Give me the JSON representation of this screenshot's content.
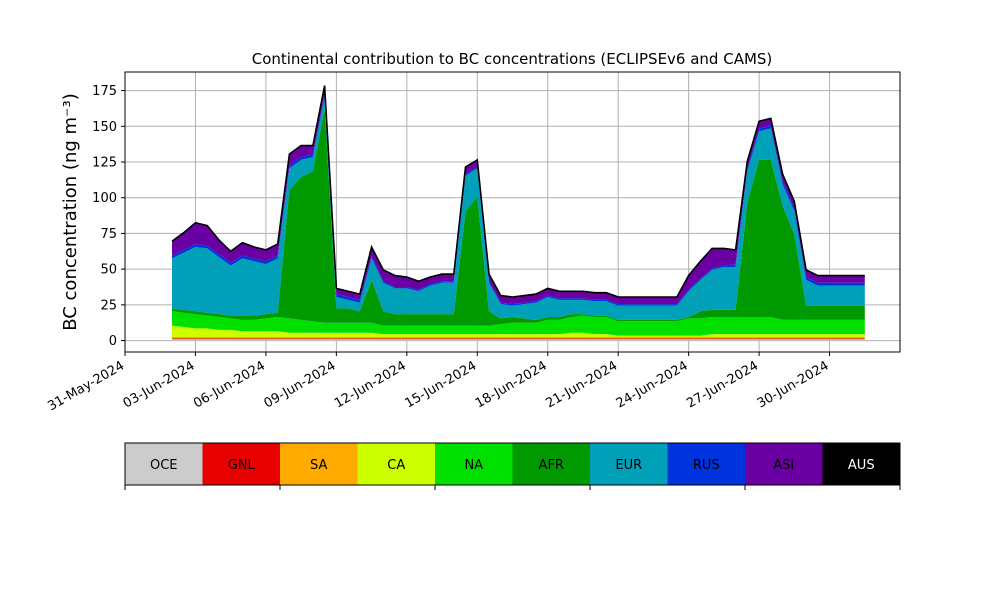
{
  "chart_data": {
    "type": "area",
    "title": "Continental contribution to BC concentrations (ECLIPSEv6 and CAMS)",
    "ylabel": "BC concentration (ng m⁻³)",
    "xlabel": "",
    "xlim": [
      "2024-05-31",
      "2024-07-03"
    ],
    "ylim": [
      -8,
      188
    ],
    "yticks": [
      0,
      25,
      50,
      75,
      100,
      125,
      150,
      175
    ],
    "xticks": [
      "2024-05-31",
      "2024-06-03",
      "2024-06-06",
      "2024-06-09",
      "2024-06-12",
      "2024-06-15",
      "2024-06-18",
      "2024-06-21",
      "2024-06-24",
      "2024-06-27",
      "2024-06-30"
    ],
    "xtick_labels": [
      "31-May-2024",
      "03-Jun-2024",
      "06-Jun-2024",
      "09-Jun-2024",
      "12-Jun-2024",
      "15-Jun-2024",
      "18-Jun-2024",
      "21-Jun-2024",
      "24-Jun-2024",
      "27-Jun-2024",
      "30-Jun-2024"
    ],
    "grid": true,
    "stacked": true,
    "x": [
      "2024-06-02T00:00",
      "2024-06-02T12:00",
      "2024-06-03T00:00",
      "2024-06-03T12:00",
      "2024-06-04T00:00",
      "2024-06-04T12:00",
      "2024-06-05T00:00",
      "2024-06-05T12:00",
      "2024-06-06T00:00",
      "2024-06-06T12:00",
      "2024-06-07T00:00",
      "2024-06-07T12:00",
      "2024-06-08T00:00",
      "2024-06-08T12:00",
      "2024-06-09T00:00",
      "2024-06-09T12:00",
      "2024-06-10T00:00",
      "2024-06-10T12:00",
      "2024-06-11T00:00",
      "2024-06-11T12:00",
      "2024-06-12T00:00",
      "2024-06-12T12:00",
      "2024-06-13T00:00",
      "2024-06-13T12:00",
      "2024-06-14T00:00",
      "2024-06-14T12:00",
      "2024-06-15T00:00",
      "2024-06-15T12:00",
      "2024-06-16T00:00",
      "2024-06-16T12:00",
      "2024-06-17T00:00",
      "2024-06-17T12:00",
      "2024-06-18T00:00",
      "2024-06-18T12:00",
      "2024-06-19T00:00",
      "2024-06-19T12:00",
      "2024-06-20T00:00",
      "2024-06-20T12:00",
      "2024-06-21T00:00",
      "2024-06-21T12:00",
      "2024-06-22T00:00",
      "2024-06-22T12:00",
      "2024-06-23T00:00",
      "2024-06-23T12:00",
      "2024-06-24T00:00",
      "2024-06-24T12:00",
      "2024-06-25T00:00",
      "2024-06-25T12:00",
      "2024-06-26T00:00",
      "2024-06-26T12:00",
      "2024-06-27T00:00",
      "2024-06-27T12:00",
      "2024-06-28T00:00",
      "2024-06-28T12:00",
      "2024-06-29T00:00",
      "2024-06-29T12:00",
      "2024-06-30T00:00",
      "2024-06-30T12:00",
      "2024-07-01T00:00",
      "2024-07-01T12:00"
    ],
    "series": [
      {
        "name": "OCE",
        "color": "#cccccc",
        "values": [
          1,
          1,
          1,
          1,
          1,
          1,
          1,
          1,
          1,
          1,
          1,
          1,
          1,
          1,
          1,
          1,
          1,
          1,
          1,
          1,
          1,
          1,
          1,
          1,
          1,
          1,
          1,
          1,
          1,
          1,
          1,
          1,
          1,
          1,
          1,
          1,
          1,
          1,
          1,
          1,
          1,
          1,
          1,
          1,
          1,
          1,
          1,
          1,
          1,
          1,
          1,
          1,
          1,
          1,
          1,
          1,
          1,
          1,
          1,
          1
        ]
      },
      {
        "name": "GNL",
        "color": "#e60000",
        "values": [
          0.5,
          0.5,
          0.5,
          0.5,
          0.5,
          0.5,
          0.5,
          0.5,
          0.5,
          0.5,
          0.5,
          0.5,
          0.5,
          0.5,
          0.5,
          0.5,
          0.5,
          0.5,
          0.5,
          0.5,
          0.5,
          0.5,
          0.5,
          0.5,
          0.5,
          0.5,
          0.5,
          0.5,
          0.5,
          0.5,
          0.5,
          0.5,
          0.5,
          0.5,
          0.5,
          0.5,
          0.5,
          0.5,
          0.5,
          0.5,
          0.5,
          0.5,
          0.5,
          0.5,
          0.5,
          0.5,
          0.5,
          0.5,
          0.5,
          0.5,
          0.5,
          0.5,
          0.5,
          0.5,
          0.5,
          0.5,
          0.5,
          0.5,
          0.5,
          0.5
        ]
      },
      {
        "name": "SA",
        "color": "#ffaa00",
        "values": [
          1,
          1,
          1,
          1,
          1,
          1,
          1,
          1,
          1,
          1,
          1,
          1,
          1,
          1,
          1,
          1,
          1,
          1,
          1,
          1,
          1,
          1,
          1,
          1,
          1,
          1,
          1,
          1,
          1,
          1,
          1,
          1,
          1,
          1,
          1,
          1,
          1,
          1,
          1,
          1,
          1,
          1,
          1,
          1,
          1,
          1,
          1,
          1,
          1,
          1,
          1,
          1,
          1,
          1,
          1,
          1,
          1,
          1,
          1,
          1
        ]
      },
      {
        "name": "CA",
        "color": "#ccff00",
        "values": [
          8,
          7,
          6,
          6,
          5,
          5,
          4,
          4,
          4,
          4,
          3,
          3,
          3,
          3,
          3,
          3,
          3,
          3,
          2,
          2,
          2,
          2,
          2,
          2,
          2,
          2,
          2,
          2,
          2,
          2,
          2,
          2,
          2,
          2,
          3,
          3,
          2,
          2,
          1,
          1,
          1,
          1,
          1,
          1,
          1,
          1,
          2,
          2,
          2,
          2,
          2,
          2,
          2,
          2,
          2,
          2,
          2,
          2,
          2,
          2
        ]
      },
      {
        "name": "NA",
        "color": "#00e000",
        "values": [
          10,
          10,
          10,
          9,
          9,
          8,
          8,
          8,
          9,
          10,
          10,
          9,
          8,
          7,
          7,
          7,
          7,
          7,
          6,
          6,
          6,
          6,
          6,
          6,
          6,
          6,
          6,
          6,
          7,
          8,
          8,
          8,
          10,
          10,
          11,
          12,
          12,
          12,
          10,
          10,
          10,
          10,
          10,
          10,
          12,
          12,
          12,
          12,
          12,
          12,
          12,
          12,
          10,
          10,
          10,
          10,
          10,
          10,
          10,
          10
        ]
      },
      {
        "name": "AFR",
        "color": "#009900",
        "values": [
          2,
          2,
          2,
          2,
          2,
          2,
          3,
          3,
          3,
          3,
          90,
          100,
          105,
          150,
          10,
          10,
          8,
          30,
          10,
          8,
          8,
          8,
          8,
          8,
          8,
          80,
          90,
          10,
          4,
          4,
          3,
          2,
          2,
          2,
          2,
          1,
          1,
          1,
          1,
          1,
          1,
          1,
          1,
          1,
          1,
          5,
          5,
          5,
          5,
          80,
          110,
          110,
          80,
          60,
          10,
          10,
          10,
          10,
          10,
          10
        ]
      },
      {
        "name": "EUR",
        "color": "#00a0b8",
        "values": [
          35,
          40,
          45,
          45,
          40,
          35,
          40,
          38,
          35,
          38,
          15,
          12,
          10,
          8,
          8,
          6,
          6,
          15,
          20,
          18,
          18,
          16,
          20,
          22,
          22,
          25,
          20,
          20,
          10,
          8,
          10,
          12,
          14,
          12,
          10,
          10,
          10,
          10,
          10,
          10,
          10,
          10,
          10,
          10,
          18,
          22,
          28,
          30,
          30,
          22,
          20,
          22,
          15,
          16,
          18,
          14,
          14,
          14,
          14,
          14
        ]
      },
      {
        "name": "RUS",
        "color": "#0033dd",
        "values": [
          2,
          2,
          2,
          2,
          2,
          2,
          2,
          2,
          2,
          2,
          2,
          2,
          2,
          2,
          2,
          2,
          2,
          2,
          1,
          1,
          1,
          1,
          1,
          1,
          1,
          1,
          1,
          1,
          1,
          1,
          1,
          1,
          1,
          1,
          1,
          1,
          1,
          1,
          1,
          1,
          1,
          1,
          1,
          1,
          1,
          1,
          1,
          1,
          2,
          2,
          2,
          2,
          2,
          2,
          2,
          2,
          2,
          2,
          2,
          2
        ]
      },
      {
        "name": "ASI",
        "color": "#6a00a3",
        "values": [
          10,
          12,
          15,
          14,
          10,
          8,
          9,
          8,
          8,
          8,
          8,
          8,
          6,
          6,
          4,
          4,
          4,
          6,
          8,
          8,
          7,
          6,
          5,
          5,
          5,
          5,
          5,
          5,
          5,
          5,
          5,
          5,
          5,
          5,
          5,
          5,
          5,
          5,
          5,
          5,
          5,
          5,
          5,
          5,
          10,
          12,
          14,
          12,
          10,
          5,
          5,
          5,
          5,
          5,
          5,
          5,
          5,
          5,
          5,
          5
        ]
      },
      {
        "name": "AUS",
        "color": "#000000",
        "values": [
          0,
          0,
          0,
          0,
          0,
          0,
          0,
          0,
          0,
          0,
          0,
          0,
          0,
          0,
          0,
          0,
          0,
          0,
          0,
          0,
          0,
          0,
          0,
          0,
          0,
          0,
          0,
          0,
          0,
          0,
          0,
          0,
          0,
          0,
          0,
          0,
          0,
          0,
          0,
          0,
          0,
          0,
          0,
          0,
          0,
          0,
          0,
          0,
          0,
          0,
          0,
          0,
          0,
          0,
          0,
          0,
          0,
          0,
          0,
          0
        ]
      }
    ],
    "total_line_color": "#000000"
  }
}
